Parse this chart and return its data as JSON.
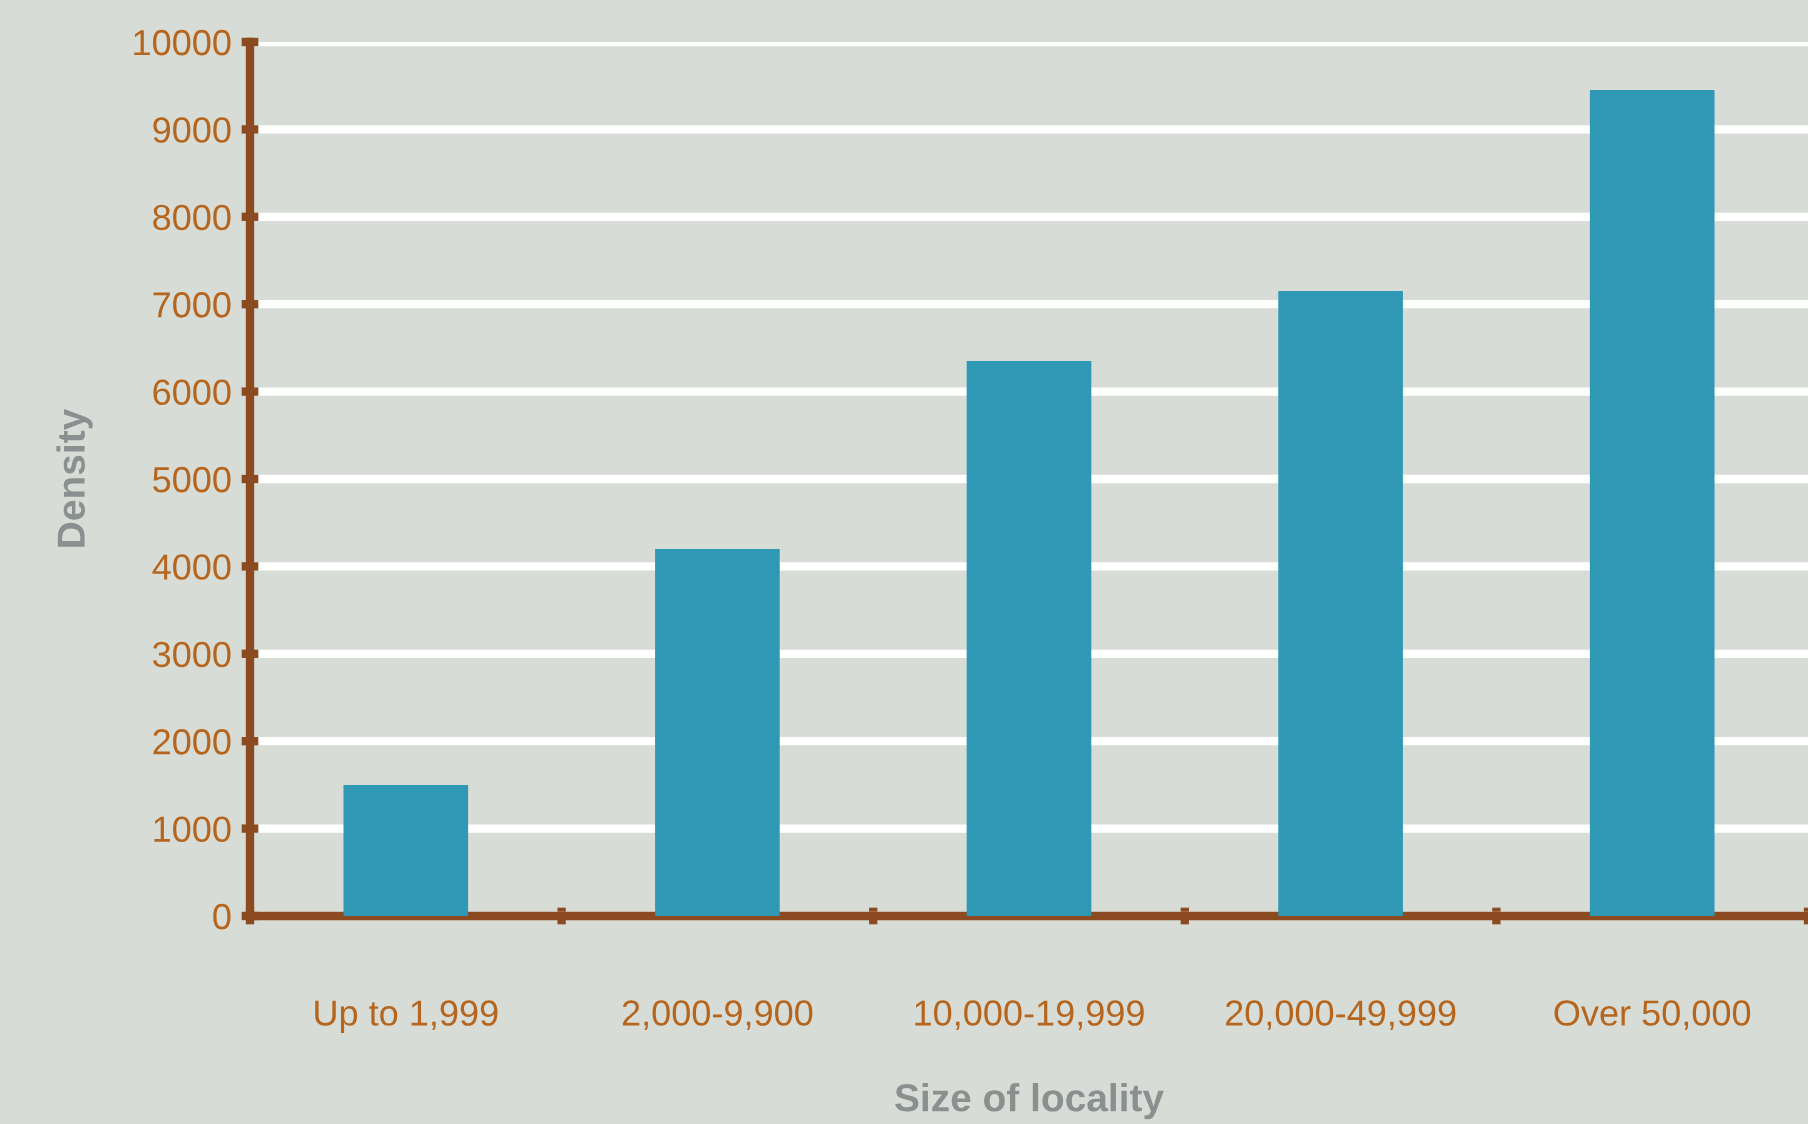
{
  "chart_data": {
    "type": "bar",
    "xlabel": "Size of locality",
    "ylabel": "Density",
    "categories": [
      "Up to 1,999",
      "2,000-9,900",
      "10,000-19,999",
      "20,000-49,999",
      "Over 50,000"
    ],
    "values": [
      1500,
      4200,
      6350,
      7150,
      9450
    ],
    "color": "#2e98b5",
    "ylim": [
      0,
      10000
    ],
    "yticks": [
      0,
      1000,
      2000,
      3000,
      4000,
      5000,
      6000,
      7000,
      8000,
      9000,
      10000
    ],
    "grid": "y",
    "legend": false
  }
}
